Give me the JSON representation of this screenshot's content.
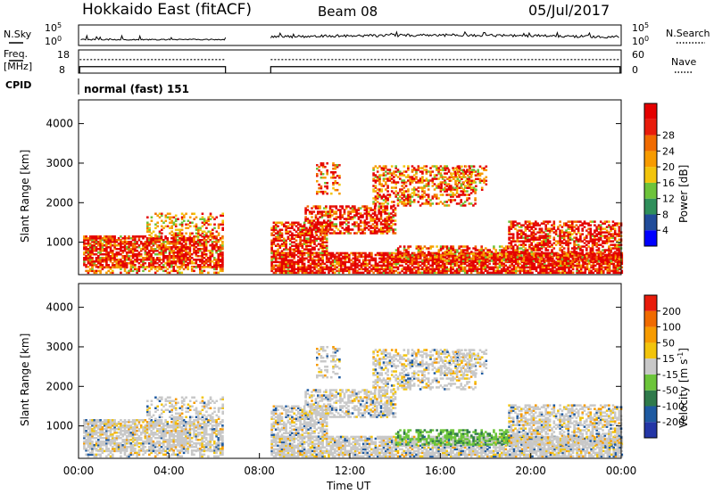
{
  "header": {
    "title": "Hokkaido East (fitACF)",
    "beam": "Beam 08",
    "date": "05/Jul/2017"
  },
  "colors": {
    "power": [
      "#0000ff",
      "#214c9a",
      "#2f8f5b",
      "#6dc33b",
      "#f2c40c",
      "#f79b00",
      "#f06b00",
      "#e81c0b",
      "#e40000"
    ],
    "velocity": [
      "#2436a6",
      "#1e5aa1",
      "#2f7a4b",
      "#6cc53a",
      "#c8c8c8",
      "#f2c40c",
      "#f79b00",
      "#f06b00",
      "#e81c0b"
    ]
  },
  "chart_data": [
    {
      "type": "line",
      "id": "nsky-nsearch",
      "labels": {
        "left_top": "N.Sky",
        "right_top": "N.Search"
      },
      "y_left_ticks": [
        "10^5",
        "10^0"
      ],
      "y_right_ticks": [
        "10^5",
        "10^0"
      ],
      "xlim": [
        0,
        24
      ],
      "gap": [
        6.5,
        8.5
      ],
      "nsky_level": 1.1,
      "nsky_level_after": 1.3
    },
    {
      "type": "line",
      "id": "freq-nave",
      "labels": {
        "left_top": "Freq.",
        "left_unit": "[MHz]",
        "right_top": "Nave"
      },
      "y_left_ticks": [
        "18",
        "8"
      ],
      "y_right_ticks": [
        "60",
        "0"
      ],
      "ylim_left": [
        8,
        18
      ],
      "ylim_right": [
        0,
        60
      ],
      "freq_mhz": 10.8,
      "nave": 35,
      "xlim": [
        0,
        24
      ],
      "gap": [
        6.5,
        8.5
      ]
    },
    {
      "type": "text",
      "id": "cpid",
      "label": "CPID",
      "value": "normal (fast) 151"
    },
    {
      "type": "heatmap",
      "id": "power",
      "ylabel": "Slant Range [km]",
      "yticks": [
        "1000",
        "2000",
        "3000",
        "4000"
      ],
      "ylim": [
        180,
        4600
      ],
      "xlim": [
        0,
        24
      ],
      "colorbar_label": "Power [dB]",
      "colorbar_ticks": [
        "4",
        "8",
        "12",
        "16",
        "20",
        "24",
        "28"
      ],
      "colorbar_range": [
        0,
        32
      ],
      "gap": [
        6.5,
        8.5
      ]
    },
    {
      "type": "heatmap",
      "id": "velocity",
      "ylabel": "Slant Range [km]",
      "yticks": [
        "1000",
        "2000",
        "3000",
        "4000"
      ],
      "ylim": [
        180,
        4600
      ],
      "xlim": [
        0,
        24
      ],
      "xticks": [
        "00:00",
        "04:00",
        "08:00",
        "12:00",
        "16:00",
        "20:00",
        "00:00"
      ],
      "xlabel": "Time UT",
      "colorbar_label": "Velocity [m s^-1]",
      "colorbar_ticks": [
        "200",
        "100",
        "50",
        "15",
        "-15",
        "-50",
        "-100",
        "-200"
      ],
      "gap": [
        6.5,
        8.5
      ]
    }
  ]
}
